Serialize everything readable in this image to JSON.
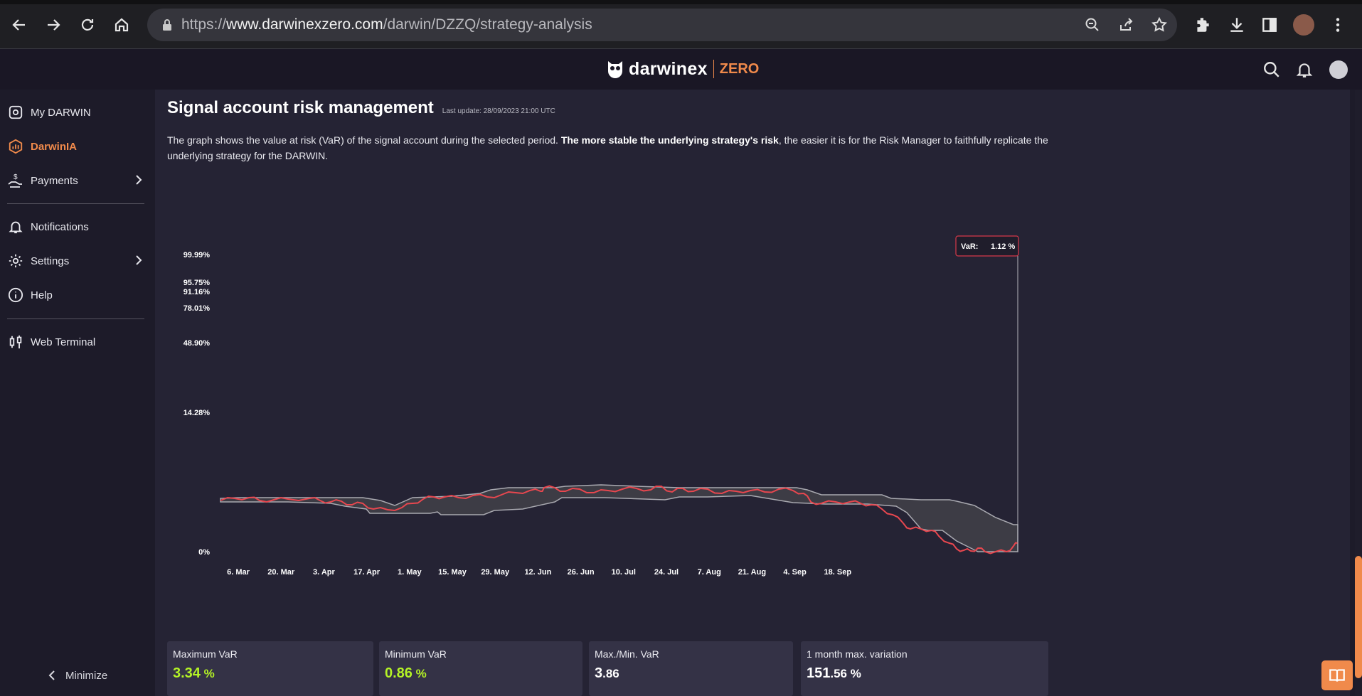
{
  "browser": {
    "url_prefix": "https://",
    "url_domain": "www.darwinexzero.com",
    "url_path": "/darwin/DZZQ/strategy-analysis"
  },
  "header": {
    "brand": "darwinex",
    "brand_suffix": "ZERO"
  },
  "sidebar": {
    "items": [
      {
        "label": "My DARWIN",
        "icon": "my-darwin-icon"
      },
      {
        "label": "DarwinIA",
        "icon": "darwinia-icon"
      },
      {
        "label": "Payments",
        "icon": "payments-icon"
      },
      {
        "label": "Notifications",
        "icon": "bell-icon"
      },
      {
        "label": "Settings",
        "icon": "gear-icon"
      },
      {
        "label": "Help",
        "icon": "info-icon"
      },
      {
        "label": "Web Terminal",
        "icon": "candlestick-icon"
      }
    ],
    "minimize_label": "Minimize"
  },
  "page": {
    "title": "Signal account risk management",
    "last_update": "Last update: 28/09/2023 21:00 UTC",
    "desc_part1": "The graph shows the value at risk (VaR) of the signal account during the selected period. ",
    "desc_bold": "The more stable the underlying strategy's risk",
    "desc_part2": ", the easier it is for the Risk Manager to faithfully replicate the underlying strategy for the DARWIN."
  },
  "chart_data": {
    "type": "area",
    "y_tick_labels": [
      "99.99%",
      "95.75%",
      "91.16%",
      "78.01%",
      "48.90%",
      "14.28%",
      "0%"
    ],
    "x_tick_labels": [
      "6. Mar",
      "20. Mar",
      "3. Apr",
      "17. Apr",
      "1. May",
      "15. May",
      "29. May",
      "12. Jun",
      "26. Jun",
      "10. Jul",
      "24. Jul",
      "7. Aug",
      "21. Aug",
      "4. Sep",
      "18. Sep"
    ],
    "tooltip_label": "VaR:",
    "tooltip_value": "1.12 %",
    "series_line_color": "#e8474f",
    "band_color": "#3d3c45"
  },
  "stats": [
    {
      "label": "Maximum VaR",
      "value_main": "3.34",
      "value_small": " %",
      "color": "#b4f326"
    },
    {
      "label": "Minimum VaR",
      "value_main": "0.86",
      "value_small": " %",
      "color": "#b4f326"
    },
    {
      "label": "Max./Min. VaR",
      "value_main": "3",
      "value_small": ".86",
      "color": "#ffffff"
    },
    {
      "label": "1 month max. variation",
      "value_main": "151",
      "value_small": ".56 %",
      "color": "#ffffff"
    }
  ]
}
